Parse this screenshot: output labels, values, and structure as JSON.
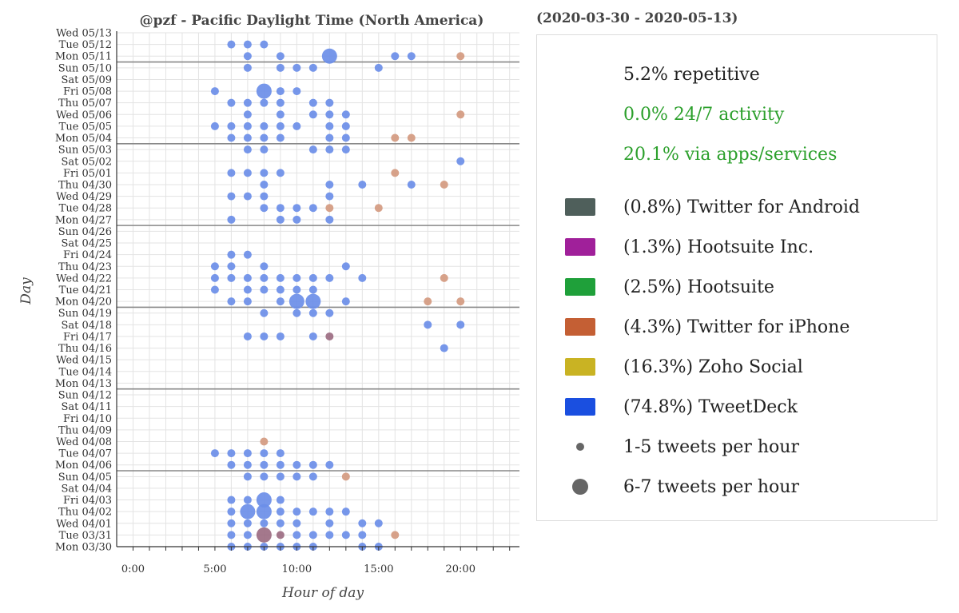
{
  "chart_data": {
    "type": "scatter",
    "title": "@pzf - Pacific Daylight Time (North America)",
    "date_range": "(2020-03-30 - 2020-05-13)",
    "xlabel": "Hour of day",
    "ylabel": "Day",
    "xlim": [
      -1,
      23.6
    ],
    "x_ticks": [
      0,
      5,
      10,
      15,
      20
    ],
    "x_tick_labels": [
      "0:00",
      "5:00",
      "10:00",
      "15:00",
      "20:00"
    ],
    "days": [
      "Wed 05/13",
      "Tue 05/12",
      "Mon 05/11",
      "Sun 05/10",
      "Sat 05/09",
      "Fri 05/08",
      "Thu 05/07",
      "Wed 05/06",
      "Tue 05/05",
      "Mon 05/04",
      "Sun 05/03",
      "Sat 05/02",
      "Fri 05/01",
      "Thu 04/30",
      "Wed 04/29",
      "Tue 04/28",
      "Mon 04/27",
      "Sun 04/26",
      "Sat 04/25",
      "Fri 04/24",
      "Thu 04/23",
      "Wed 04/22",
      "Tue 04/21",
      "Mon 04/20",
      "Sun 04/19",
      "Sat 04/18",
      "Fri 04/17",
      "Thu 04/16",
      "Wed 04/15",
      "Tue 04/14",
      "Mon 04/13",
      "Sun 04/12",
      "Sat 04/11",
      "Fri 04/10",
      "Thu 04/09",
      "Wed 04/08",
      "Tue 04/07",
      "Mon 04/06",
      "Sun 04/05",
      "Sat 04/04",
      "Fri 04/03",
      "Thu 04/02",
      "Wed 04/01",
      "Tue 03/31",
      "Mon 03/30"
    ],
    "week_separators_after": [
      "Mon 05/11",
      "Mon 05/04",
      "Mon 04/27",
      "Mon 04/20",
      "Mon 04/13",
      "Mon 04/06"
    ],
    "grid": true,
    "legend_position": "right",
    "source_colors": {
      "TweetDeck": "#6b8ee8",
      "Twitter for iPhone": "#d49a80",
      "Mixed": "#9c6d82"
    },
    "points": [
      {
        "day": "Tue 05/12",
        "hours": [
          6,
          7,
          8
        ],
        "source": "TweetDeck"
      },
      {
        "day": "Mon 05/11",
        "hours": [
          7,
          9,
          16,
          17
        ],
        "source": "TweetDeck"
      },
      {
        "day": "Mon 05/11",
        "hours": [
          12
        ],
        "source": "TweetDeck",
        "size": "large"
      },
      {
        "day": "Mon 05/11",
        "hours": [
          20
        ],
        "source": "Twitter for iPhone"
      },
      {
        "day": "Sun 05/10",
        "hours": [
          7,
          9,
          10,
          11,
          15
        ],
        "source": "TweetDeck"
      },
      {
        "day": "Fri 05/08",
        "hours": [
          5,
          9,
          10
        ],
        "source": "TweetDeck"
      },
      {
        "day": "Fri 05/08",
        "hours": [
          8
        ],
        "source": "TweetDeck",
        "size": "large"
      },
      {
        "day": "Thu 05/07",
        "hours": [
          6,
          7,
          8,
          9,
          11,
          12
        ],
        "source": "TweetDeck"
      },
      {
        "day": "Wed 05/06",
        "hours": [
          7,
          9,
          11,
          12,
          13
        ],
        "source": "TweetDeck"
      },
      {
        "day": "Wed 05/06",
        "hours": [
          20
        ],
        "source": "Twitter for iPhone"
      },
      {
        "day": "Tue 05/05",
        "hours": [
          5,
          6,
          7,
          8,
          9,
          10,
          12,
          13
        ],
        "source": "TweetDeck"
      },
      {
        "day": "Mon 05/04",
        "hours": [
          6,
          7,
          8,
          9,
          12,
          13
        ],
        "source": "TweetDeck"
      },
      {
        "day": "Mon 05/04",
        "hours": [
          16,
          17
        ],
        "source": "Twitter for iPhone"
      },
      {
        "day": "Sun 05/03",
        "hours": [
          7,
          8,
          11,
          12,
          13
        ],
        "source": "TweetDeck"
      },
      {
        "day": "Sat 05/02",
        "hours": [
          20
        ],
        "source": "TweetDeck"
      },
      {
        "day": "Fri 05/01",
        "hours": [
          6,
          7,
          8,
          9
        ],
        "source": "TweetDeck"
      },
      {
        "day": "Fri 05/01",
        "hours": [
          16
        ],
        "source": "Twitter for iPhone"
      },
      {
        "day": "Thu 04/30",
        "hours": [
          8,
          12,
          14,
          17
        ],
        "source": "TweetDeck"
      },
      {
        "day": "Thu 04/30",
        "hours": [
          19
        ],
        "source": "Twitter for iPhone"
      },
      {
        "day": "Wed 04/29",
        "hours": [
          6,
          7,
          8,
          12
        ],
        "source": "TweetDeck"
      },
      {
        "day": "Tue 04/28",
        "hours": [
          8,
          9,
          10,
          11
        ],
        "source": "TweetDeck"
      },
      {
        "day": "Tue 04/28",
        "hours": [
          12,
          15
        ],
        "source": "Twitter for iPhone"
      },
      {
        "day": "Mon 04/27",
        "hours": [
          6,
          9,
          10,
          12
        ],
        "source": "TweetDeck"
      },
      {
        "day": "Fri 04/24",
        "hours": [
          6,
          7
        ],
        "source": "TweetDeck"
      },
      {
        "day": "Thu 04/23",
        "hours": [
          5,
          6,
          8,
          13
        ],
        "source": "TweetDeck"
      },
      {
        "day": "Wed 04/22",
        "hours": [
          5,
          6,
          7,
          8,
          9,
          10,
          11,
          12,
          14
        ],
        "source": "TweetDeck"
      },
      {
        "day": "Wed 04/22",
        "hours": [
          19
        ],
        "source": "Twitter for iPhone"
      },
      {
        "day": "Tue 04/21",
        "hours": [
          5,
          7,
          8,
          9,
          10,
          11
        ],
        "source": "TweetDeck"
      },
      {
        "day": "Mon 04/20",
        "hours": [
          6,
          7,
          9,
          13
        ],
        "source": "TweetDeck"
      },
      {
        "day": "Mon 04/20",
        "hours": [
          10,
          11
        ],
        "source": "TweetDeck",
        "size": "large"
      },
      {
        "day": "Mon 04/20",
        "hours": [
          18,
          20
        ],
        "source": "Twitter for iPhone"
      },
      {
        "day": "Sun 04/19",
        "hours": [
          8,
          10,
          11,
          12
        ],
        "source": "TweetDeck"
      },
      {
        "day": "Sat 04/18",
        "hours": [
          18,
          20
        ],
        "source": "TweetDeck"
      },
      {
        "day": "Fri 04/17",
        "hours": [
          7,
          8,
          9,
          11
        ],
        "source": "TweetDeck"
      },
      {
        "day": "Fri 04/17",
        "hours": [
          12
        ],
        "source": "Mixed"
      },
      {
        "day": "Thu 04/16",
        "hours": [
          19
        ],
        "source": "TweetDeck"
      },
      {
        "day": "Wed 04/08",
        "hours": [
          8
        ],
        "source": "Twitter for iPhone"
      },
      {
        "day": "Tue 04/07",
        "hours": [
          5,
          6,
          7,
          8,
          9
        ],
        "source": "TweetDeck"
      },
      {
        "day": "Mon 04/06",
        "hours": [
          6,
          7,
          8,
          9,
          10,
          11,
          12
        ],
        "source": "TweetDeck"
      },
      {
        "day": "Sun 04/05",
        "hours": [
          7,
          8,
          9,
          10,
          11
        ],
        "source": "TweetDeck"
      },
      {
        "day": "Sun 04/05",
        "hours": [
          13
        ],
        "source": "Twitter for iPhone"
      },
      {
        "day": "Fri 04/03",
        "hours": [
          6,
          7,
          9
        ],
        "source": "TweetDeck"
      },
      {
        "day": "Fri 04/03",
        "hours": [
          8
        ],
        "source": "TweetDeck",
        "size": "large"
      },
      {
        "day": "Thu 04/02",
        "hours": [
          6,
          9,
          10,
          11,
          12,
          13
        ],
        "source": "TweetDeck"
      },
      {
        "day": "Thu 04/02",
        "hours": [
          7,
          8
        ],
        "source": "TweetDeck",
        "size": "large"
      },
      {
        "day": "Wed 04/01",
        "hours": [
          6,
          7,
          8,
          9,
          10,
          12,
          14,
          15
        ],
        "source": "TweetDeck"
      },
      {
        "day": "Tue 03/31",
        "hours": [
          6,
          7,
          10,
          11,
          12,
          13,
          14
        ],
        "source": "TweetDeck"
      },
      {
        "day": "Tue 03/31",
        "hours": [
          8
        ],
        "source": "Mixed",
        "size": "large"
      },
      {
        "day": "Tue 03/31",
        "hours": [
          9
        ],
        "source": "Mixed"
      },
      {
        "day": "Tue 03/31",
        "hours": [
          16
        ],
        "source": "Twitter for iPhone"
      },
      {
        "day": "Mon 03/30",
        "hours": [
          6,
          7,
          8,
          9,
          10,
          11,
          14,
          15
        ],
        "source": "TweetDeck"
      }
    ]
  },
  "legend": {
    "stats": [
      {
        "text": "5.2% repetitive",
        "color": "#222222"
      },
      {
        "text": "0.0% 24/7 activity",
        "color": "#2ca02c"
      },
      {
        "text": "20.1% via apps/services",
        "color": "#2ca02c"
      }
    ],
    "sources": [
      {
        "label": "(0.8%) Twitter for Android",
        "color": "#4f5f5b"
      },
      {
        "label": "(1.3%) Hootsuite Inc.",
        "color": "#a0209a"
      },
      {
        "label": "(2.5%) Hootsuite",
        "color": "#1fa03a"
      },
      {
        "label": "(4.3%) Twitter for iPhone",
        "color": "#c45f34"
      },
      {
        "label": "(16.3%) Zoho Social",
        "color": "#c9b323"
      },
      {
        "label": "(74.8%) TweetDeck",
        "color": "#1a4fe0"
      }
    ],
    "sizes": [
      {
        "label": "1-5 tweets per hour",
        "size": "small"
      },
      {
        "label": "6-7 tweets per hour",
        "size": "large"
      }
    ]
  }
}
